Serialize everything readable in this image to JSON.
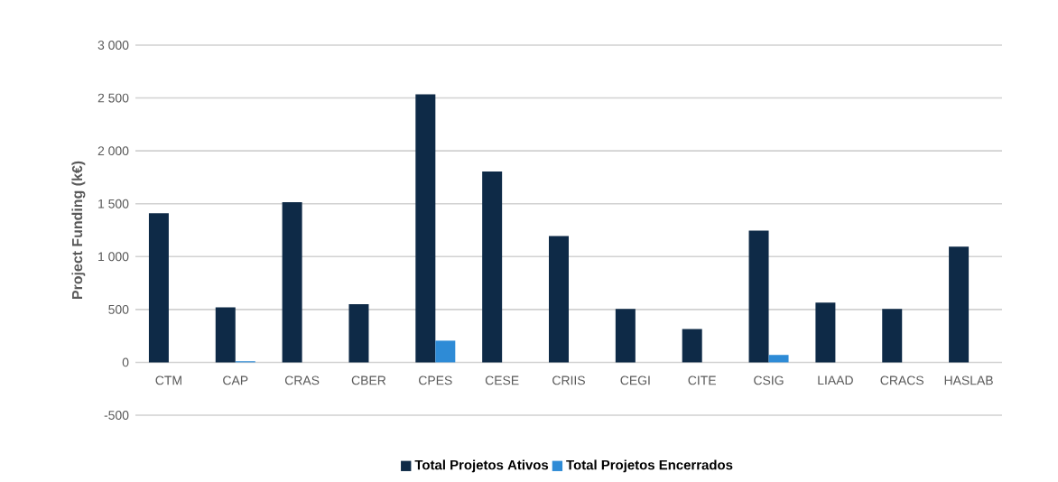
{
  "chart_data": {
    "type": "bar",
    "ylabel": "Project Funding (k€)",
    "categories": [
      "CTM",
      "CAP",
      "CRAS",
      "CBER",
      "CPES",
      "CESE",
      "CRIIS",
      "CEGI",
      "CITE",
      "CSIG",
      "LIAAD",
      "CRACS",
      "HASLAB"
    ],
    "series": [
      {
        "name": "Total Projetos Ativos",
        "color": "#0e2a47",
        "values": [
          1410,
          520,
          1515,
          550,
          2535,
          1805,
          1195,
          505,
          315,
          1245,
          565,
          505,
          1095
        ]
      },
      {
        "name": "Total Projetos Encerrados",
        "color": "#2e8bd6",
        "values": [
          0,
          10,
          0,
          0,
          205,
          0,
          0,
          0,
          0,
          70,
          0,
          0,
          0
        ]
      }
    ],
    "ylim": [
      -500,
      3000
    ],
    "yticks": [
      {
        "value": -500,
        "label": "-500"
      },
      0,
      500,
      {
        "value": 1000,
        "label": "1 000"
      },
      {
        "value": 1500,
        "label": "1 500"
      },
      {
        "value": 2000,
        "label": "2 000"
      },
      {
        "value": 2500,
        "label": "2 500"
      },
      {
        "value": 3000,
        "label": "3 000"
      }
    ],
    "grid": "y",
    "legend": "bottom"
  }
}
